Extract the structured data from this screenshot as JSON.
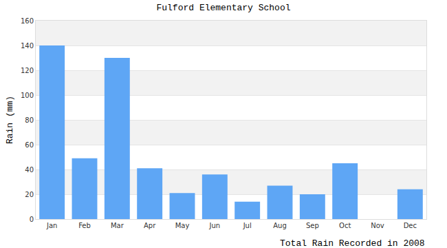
{
  "chart_data": {
    "type": "bar",
    "title": "Fulford Elementary School",
    "x_label": "Total Rain Recorded in 2008",
    "y_label": "Rain (mm)",
    "categories": [
      "Jan",
      "Feb",
      "Mar",
      "Apr",
      "May",
      "Jun",
      "Jul",
      "Aug",
      "Sep",
      "Oct",
      "Nov",
      "Dec"
    ],
    "values": [
      140,
      49,
      130,
      41,
      21,
      36,
      14,
      27,
      20,
      45,
      0,
      24
    ],
    "color": "#5ea6f5",
    "ylim": [
      0,
      160
    ],
    "yticks": [
      0,
      20,
      40,
      60,
      80,
      100,
      120,
      140,
      160
    ],
    "grid": true
  }
}
